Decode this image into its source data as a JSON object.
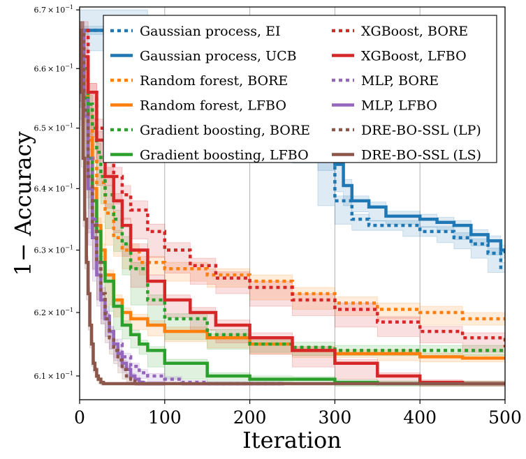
{
  "chart_data": {
    "type": "line",
    "xlabel": "Iteration",
    "ylabel": "1− Accuracy",
    "xlim": [
      0,
      500
    ],
    "ylim": [
      0.6063,
      0.6705
    ],
    "y_scale": "log",
    "grid": "vertical",
    "legend": "top-right",
    "x_ticks": [
      {
        "value": 0,
        "label": "0"
      },
      {
        "value": 100,
        "label": "100"
      },
      {
        "value": 200,
        "label": "200"
      },
      {
        "value": 300,
        "label": "300"
      },
      {
        "value": 400,
        "label": "400"
      },
      {
        "value": 500,
        "label": "500"
      }
    ],
    "y_ticks": [
      {
        "value": 0.61,
        "mantissa": "6.1",
        "times": "×",
        "base": "10",
        "exp": "−1"
      },
      {
        "value": 0.62,
        "mantissa": "6.2",
        "times": "×",
        "base": "10",
        "exp": "−1"
      },
      {
        "value": 0.63,
        "mantissa": "6.3",
        "times": "×",
        "base": "10",
        "exp": "−1"
      },
      {
        "value": 0.64,
        "mantissa": "6.4",
        "times": "×",
        "base": "10",
        "exp": "−1"
      },
      {
        "value": 0.65,
        "mantissa": "6.5",
        "times": "×",
        "base": "10",
        "exp": "−1"
      },
      {
        "value": 0.66,
        "mantissa": "6.6",
        "times": "×",
        "base": "10",
        "exp": "−1"
      },
      {
        "value": 0.67,
        "mantissa": "6.7",
        "times": "×",
        "base": "10",
        "exp": "−1"
      }
    ],
    "series": [
      {
        "name": "Gaussian process, EI",
        "color": "#1f77b4",
        "style": "dotted",
        "x": [
          0,
          20,
          50,
          80,
          110,
          150,
          200,
          250,
          280,
          300,
          320,
          340,
          380,
          400,
          420,
          440,
          460,
          480,
          495,
          500
        ],
        "y": [
          0.6665,
          0.6665,
          0.6665,
          0.666,
          0.663,
          0.659,
          0.654,
          0.65,
          0.645,
          0.638,
          0.635,
          0.634,
          0.634,
          0.633,
          0.633,
          0.632,
          0.631,
          0.6295,
          0.6272,
          0.6272
        ],
        "band": [
          0.0007,
          0.0007,
          0.0007,
          0.0007,
          0.0008,
          0.0008,
          0.0008,
          0.0008,
          0.0008,
          0.0008,
          0.0008,
          0.0008,
          0.0008,
          0.0008,
          0.0008,
          0.0008,
          0.0008,
          0.0008,
          0.0008,
          0.0008
        ]
      },
      {
        "name": "Gaussian process, UCB",
        "color": "#1f77b4",
        "style": "solid",
        "x": [
          0,
          50,
          80,
          110,
          150,
          200,
          250,
          280,
          300,
          310,
          320,
          340,
          360,
          400,
          420,
          440,
          460,
          480,
          495,
          500
        ],
        "y": [
          0.6665,
          0.6665,
          0.666,
          0.663,
          0.659,
          0.6545,
          0.6505,
          0.647,
          0.644,
          0.6405,
          0.638,
          0.637,
          0.6355,
          0.635,
          0.6345,
          0.634,
          0.6325,
          0.6315,
          0.63,
          0.6295
        ],
        "band": [
          0.0035,
          0.0035,
          0.0025,
          0.001,
          0.001,
          0.001,
          0.001,
          0.001,
          0.001,
          0.001,
          0.0008,
          0.0008,
          0.0008,
          0.0008,
          0.0008,
          0.0008,
          0.0008,
          0.0008,
          0.0008,
          0.0008
        ]
      },
      {
        "name": "Random forest, BORE",
        "color": "#ff7f0e",
        "style": "dotted",
        "x": [
          0,
          5,
          10,
          15,
          20,
          30,
          40,
          50,
          70,
          100,
          150,
          200,
          250,
          300,
          350,
          400,
          450,
          500
        ],
        "y": [
          0.6665,
          0.66,
          0.652,
          0.645,
          0.641,
          0.636,
          0.632,
          0.63,
          0.628,
          0.627,
          0.626,
          0.625,
          0.623,
          0.6215,
          0.6205,
          0.62,
          0.619,
          0.619
        ],
        "band": [
          0.0015,
          0.0015,
          0.0015,
          0.0015,
          0.0015,
          0.0015,
          0.0012,
          0.001,
          0.001,
          0.001,
          0.001,
          0.001,
          0.001,
          0.001,
          0.001,
          0.001,
          0.001,
          0.001
        ]
      },
      {
        "name": "Random forest, LFBO",
        "color": "#ff7f0e",
        "style": "solid",
        "x": [
          0,
          5,
          10,
          15,
          20,
          25,
          30,
          40,
          50,
          60,
          80,
          100,
          150,
          200,
          250,
          300,
          350,
          400,
          450,
          500
        ],
        "y": [
          0.6665,
          0.658,
          0.648,
          0.64,
          0.634,
          0.63,
          0.626,
          0.622,
          0.62,
          0.619,
          0.618,
          0.617,
          0.616,
          0.615,
          0.614,
          0.6135,
          0.6135,
          0.613,
          0.6128,
          0.6128
        ],
        "band": [
          0.0015,
          0.0015,
          0.0015,
          0.0015,
          0.0012,
          0.001,
          0.0008,
          0.0008,
          0.0007,
          0.0007,
          0.0007,
          0.0007,
          0.0006,
          0.0006,
          0.0006,
          0.0006,
          0.0006,
          0.0006,
          0.0006,
          0.0006
        ]
      },
      {
        "name": "Gradient boosting, BORE",
        "color": "#2ca02c",
        "style": "dotted",
        "x": [
          0,
          5,
          10,
          15,
          20,
          25,
          30,
          40,
          50,
          60,
          80,
          100,
          150,
          200,
          250,
          300,
          350,
          400,
          450,
          500
        ],
        "y": [
          0.6665,
          0.66,
          0.654,
          0.65,
          0.646,
          0.642,
          0.639,
          0.635,
          0.631,
          0.627,
          0.622,
          0.619,
          0.6165,
          0.615,
          0.6145,
          0.614,
          0.614,
          0.614,
          0.614,
          0.614
        ],
        "band": [
          0.0015,
          0.0015,
          0.0015,
          0.0015,
          0.0015,
          0.0015,
          0.0015,
          0.0015,
          0.0012,
          0.001,
          0.0008,
          0.0008,
          0.0008,
          0.0008,
          0.0008,
          0.0008,
          0.0008,
          0.0008,
          0.0008,
          0.0008
        ]
      },
      {
        "name": "Gradient boosting, LFBO",
        "color": "#2ca02c",
        "style": "solid",
        "x": [
          0,
          5,
          10,
          15,
          20,
          25,
          30,
          40,
          50,
          60,
          70,
          80,
          100,
          150,
          200,
          250,
          300,
          350,
          400,
          500
        ],
        "y": [
          0.6665,
          0.655,
          0.645,
          0.638,
          0.633,
          0.628,
          0.625,
          0.621,
          0.618,
          0.6165,
          0.615,
          0.614,
          0.612,
          0.61,
          0.6095,
          0.6095,
          0.609,
          0.6088,
          0.6088,
          0.6088
        ],
        "band": [
          0.0015,
          0.0015,
          0.0015,
          0.0012,
          0.001,
          0.001,
          0.0008,
          0.0008,
          0.0007,
          0.0007,
          0.0006,
          0.0006,
          0.0006,
          0.0005,
          0.0005,
          0.0004,
          0.0004,
          0.0004,
          0.0004,
          0.0004
        ]
      },
      {
        "name": "XGBoost, BORE",
        "color": "#d62728",
        "style": "dotted",
        "x": [
          0,
          10,
          20,
          30,
          40,
          50,
          60,
          80,
          100,
          130,
          160,
          200,
          250,
          300,
          350,
          400,
          450,
          500
        ],
        "y": [
          0.6665,
          0.656,
          0.65,
          0.646,
          0.642,
          0.639,
          0.6365,
          0.633,
          0.63,
          0.6275,
          0.6255,
          0.624,
          0.622,
          0.6205,
          0.6185,
          0.617,
          0.616,
          0.6145
        ],
        "band": [
          0.0015,
          0.0015,
          0.0015,
          0.0015,
          0.0015,
          0.0015,
          0.0015,
          0.0012,
          0.0012,
          0.0012,
          0.001,
          0.001,
          0.001,
          0.001,
          0.0008,
          0.0008,
          0.0008,
          0.0008
        ]
      },
      {
        "name": "XGBoost, LFBO",
        "color": "#d62728",
        "style": "solid",
        "x": [
          0,
          5,
          10,
          20,
          30,
          40,
          50,
          60,
          80,
          100,
          130,
          160,
          200,
          250,
          300,
          350,
          400,
          450,
          500
        ],
        "y": [
          0.6665,
          0.662,
          0.656,
          0.648,
          0.642,
          0.638,
          0.634,
          0.63,
          0.625,
          0.622,
          0.62,
          0.618,
          0.616,
          0.614,
          0.612,
          0.61,
          0.609,
          0.6088,
          0.6088
        ],
        "band": [
          0.0015,
          0.0015,
          0.0015,
          0.0015,
          0.0015,
          0.0012,
          0.0012,
          0.001,
          0.001,
          0.0008,
          0.0008,
          0.0008,
          0.0008,
          0.0006,
          0.0006,
          0.0005,
          0.0004,
          0.0004,
          0.0004
        ]
      },
      {
        "name": "MLP, BORE",
        "color": "#9467bd",
        "style": "dotted",
        "x": [
          0,
          5,
          10,
          15,
          20,
          25,
          30,
          35,
          40,
          50,
          60,
          70,
          80,
          100,
          120,
          150,
          200,
          240
        ],
        "y": [
          0.6665,
          0.655,
          0.645,
          0.635,
          0.628,
          0.623,
          0.62,
          0.617,
          0.615,
          0.613,
          0.6115,
          0.6105,
          0.61,
          0.6095,
          0.609,
          0.6088,
          0.6088,
          0.6088
        ],
        "band": [
          0.0015,
          0.0015,
          0.0015,
          0.0015,
          0.0012,
          0.001,
          0.001,
          0.0008,
          0.0008,
          0.0006,
          0.0005,
          0.0005,
          0.0004,
          0.0004,
          0.0003,
          0.0003,
          0.0003,
          0.0003
        ]
      },
      {
        "name": "MLP, LFBO",
        "color": "#9467bd",
        "style": "solid",
        "x": [
          0,
          5,
          10,
          15,
          20,
          25,
          30,
          35,
          40,
          45,
          50,
          55,
          60,
          65,
          70,
          75,
          100
        ],
        "y": [
          0.6665,
          0.652,
          0.64,
          0.632,
          0.626,
          0.622,
          0.619,
          0.617,
          0.615,
          0.6135,
          0.612,
          0.611,
          0.61,
          0.6095,
          0.609,
          0.6088,
          0.6088
        ],
        "band": [
          0.0015,
          0.0015,
          0.0015,
          0.0012,
          0.001,
          0.001,
          0.0008,
          0.0008,
          0.0007,
          0.0006,
          0.0005,
          0.0005,
          0.0004,
          0.0004,
          0.0003,
          0.0003,
          0.0003
        ]
      },
      {
        "name": "DRE-BO-SSL (LP)",
        "color": "#8c564b",
        "style": "dotted",
        "x": [
          0,
          5,
          10,
          15,
          20,
          25,
          30,
          35,
          40,
          45,
          50,
          55,
          60,
          65,
          70
        ],
        "y": [
          0.6665,
          0.653,
          0.642,
          0.634,
          0.628,
          0.623,
          0.619,
          0.616,
          0.614,
          0.6125,
          0.611,
          0.61,
          0.6095,
          0.609,
          0.6088
        ],
        "band": [
          0.0015,
          0.0015,
          0.0015,
          0.0012,
          0.001,
          0.001,
          0.0008,
          0.0008,
          0.0006,
          0.0006,
          0.0005,
          0.0005,
          0.0004,
          0.0004,
          0.0003
        ]
      },
      {
        "name": "DRE-BO-SSL (LS)",
        "color": "#8c564b",
        "style": "solid",
        "x": [
          0,
          2,
          4,
          6,
          8,
          10,
          12,
          14,
          16,
          18,
          20,
          22,
          25,
          28,
          30,
          500
        ],
        "y": [
          0.6665,
          0.656,
          0.645,
          0.635,
          0.628,
          0.623,
          0.618,
          0.615,
          0.612,
          0.611,
          0.61,
          0.6095,
          0.609,
          0.6088,
          0.6088,
          0.6088
        ],
        "band": [
          0.0015,
          0.0015,
          0.0015,
          0.0012,
          0.001,
          0.001,
          0.0008,
          0.0006,
          0.0005,
          0.0004,
          0.0003,
          0.0003,
          0.0002,
          0.0002,
          0.0002,
          0.0002
        ]
      }
    ]
  }
}
